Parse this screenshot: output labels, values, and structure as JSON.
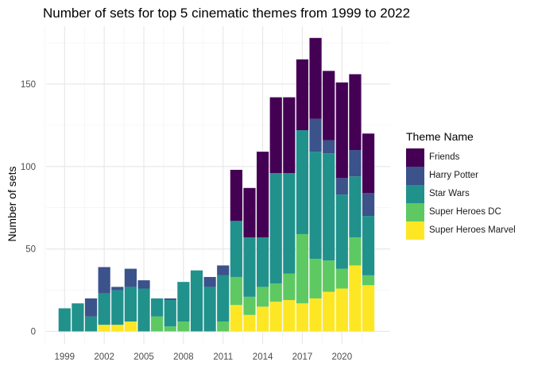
{
  "chart_data": {
    "type": "bar",
    "stacked": true,
    "title": "Number of sets for top 5 cinematic themes from 1999 to 2022",
    "xlabel": "",
    "ylabel": "Number of sets",
    "legend_title": "Theme Name",
    "legend_position": "right",
    "grid": true,
    "xlim": [
      1998.5,
      2022.5
    ],
    "ylim": [
      0,
      178
    ],
    "xticks": [
      1999,
      2002,
      2005,
      2008,
      2011,
      2014,
      2017,
      2020
    ],
    "yticks": [
      0,
      50,
      100,
      150
    ],
    "x": [
      1999,
      2000,
      2001,
      2002,
      2003,
      2004,
      2005,
      2006,
      2007,
      2008,
      2009,
      2010,
      2011,
      2012,
      2013,
      2014,
      2015,
      2016,
      2017,
      2018,
      2019,
      2020,
      2021,
      2022
    ],
    "series": [
      {
        "name": "Super Heroes Marvel",
        "color": "#fde725",
        "values": [
          0,
          0,
          0,
          4,
          4,
          6,
          0,
          0,
          0,
          0,
          0,
          0,
          0,
          16,
          10,
          15,
          18,
          19,
          17,
          20,
          24,
          26,
          40,
          28
        ]
      },
      {
        "name": "Super Heroes DC",
        "color": "#5ec962",
        "values": [
          0,
          0,
          0,
          0,
          0,
          0,
          0,
          9,
          3,
          6,
          0,
          0,
          6,
          17,
          11,
          12,
          11,
          16,
          42,
          24,
          19,
          12,
          17,
          6
        ]
      },
      {
        "name": "Star Wars",
        "color": "#21918c",
        "values": [
          14,
          17,
          9,
          19,
          21,
          21,
          26,
          11,
          16,
          24,
          37,
          27,
          28,
          34,
          36,
          30,
          67,
          61,
          63,
          65,
          65,
          45,
          37,
          36
        ]
      },
      {
        "name": "Harry Potter",
        "color": "#3b528b",
        "values": [
          0,
          0,
          11,
          16,
          2,
          11,
          5,
          0,
          1,
          0,
          0,
          6,
          6,
          0,
          0,
          0,
          0,
          0,
          0,
          20,
          8,
          10,
          16,
          14
        ]
      },
      {
        "name": "Friends",
        "color": "#440154",
        "values": [
          0,
          0,
          0,
          0,
          0,
          0,
          0,
          0,
          0,
          0,
          0,
          0,
          0,
          31,
          30,
          52,
          46,
          46,
          43,
          49,
          42,
          58,
          46,
          36
        ]
      }
    ],
    "legend_order": [
      "Friends",
      "Harry Potter",
      "Star Wars",
      "Super Heroes DC",
      "Super Heroes Marvel"
    ]
  }
}
